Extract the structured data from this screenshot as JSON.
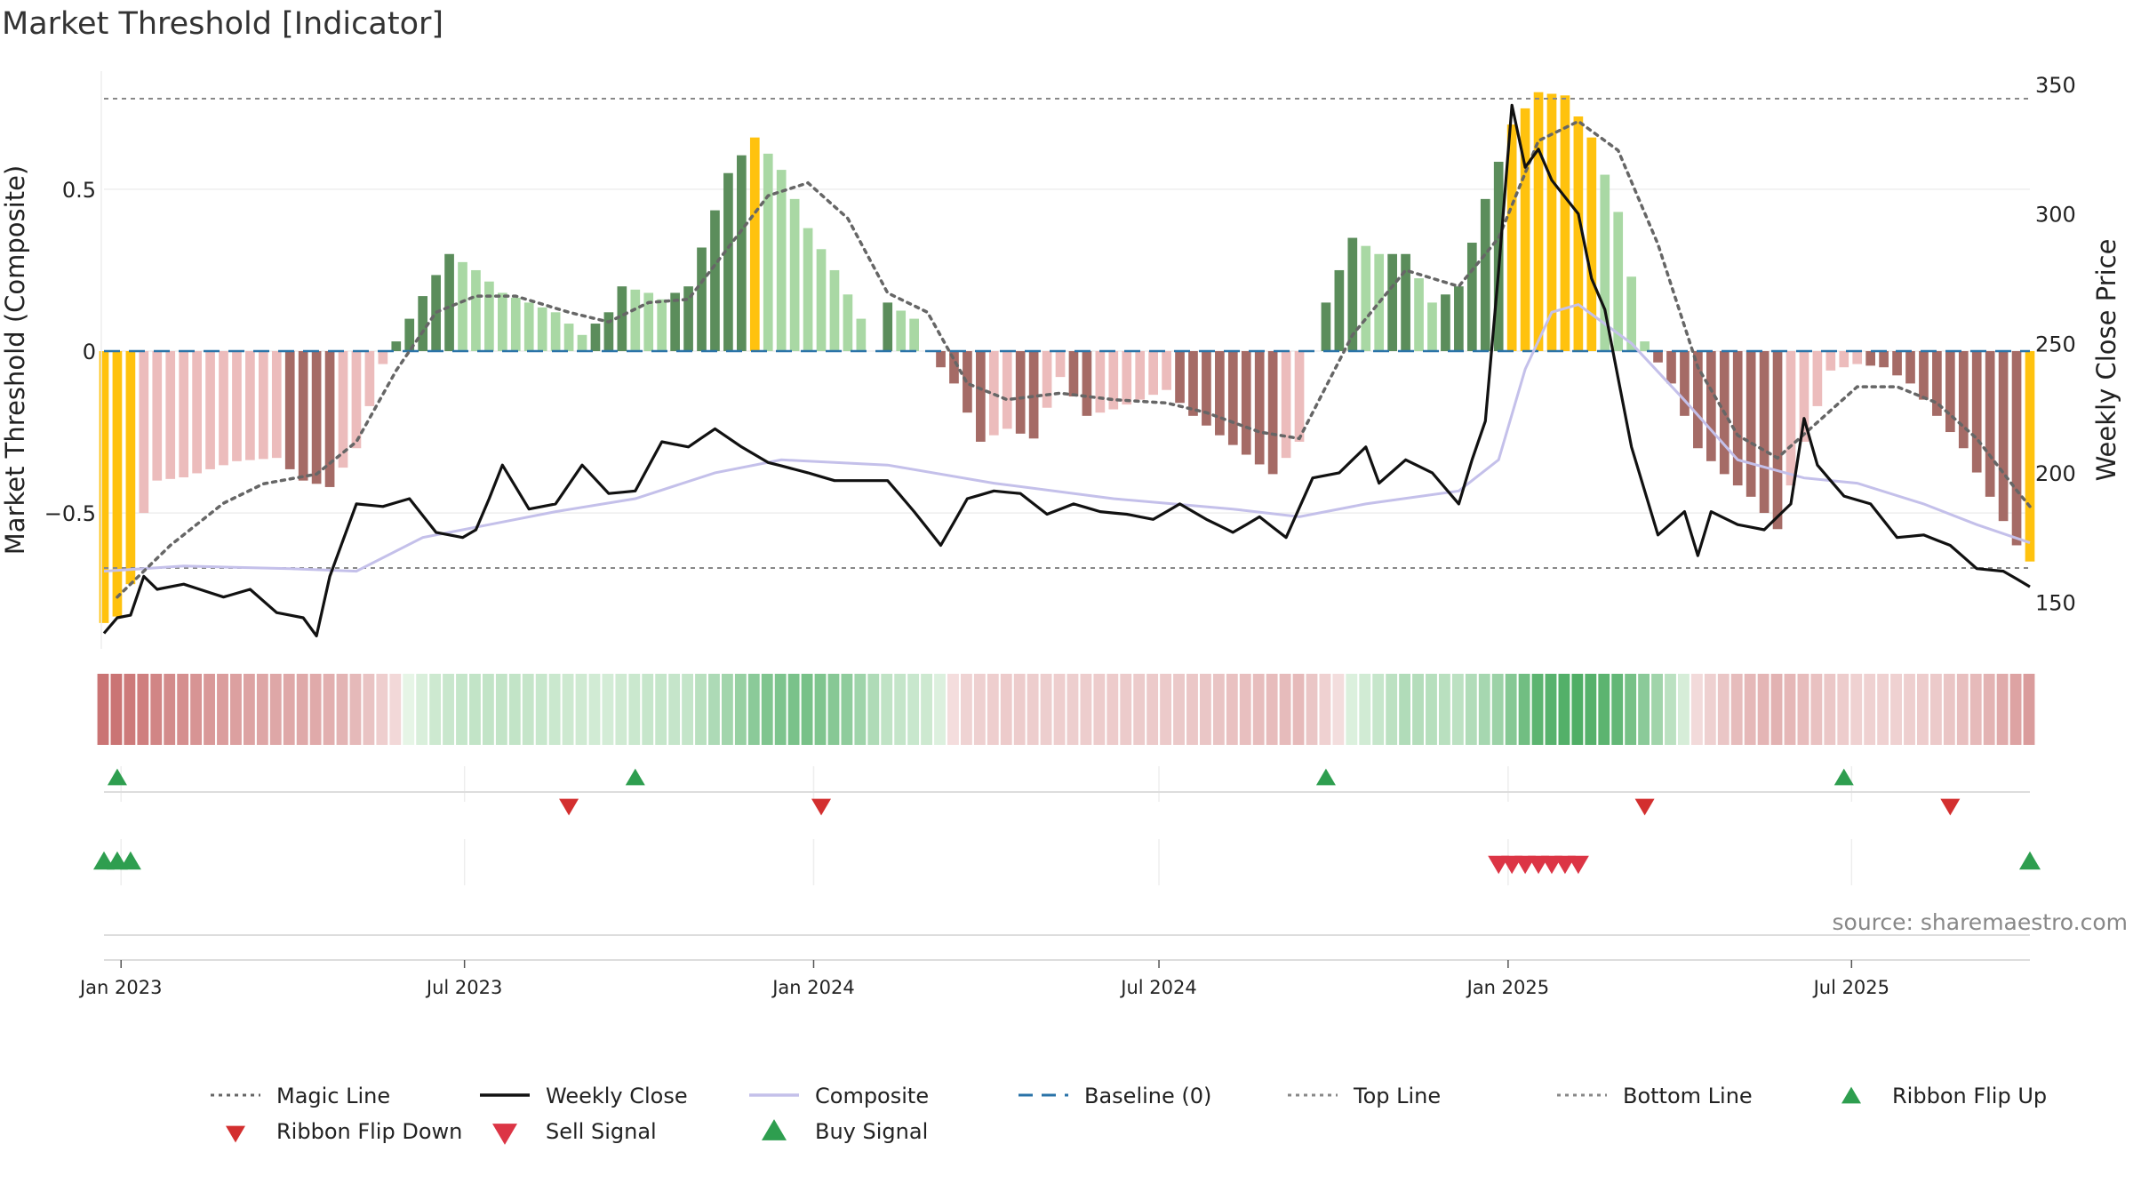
{
  "chart_data": {
    "type": "bar",
    "title": "Market Threshold [Indicator]",
    "ylabel_left": "Market Threshold (Composite)",
    "ylabel_right": "Weekly Close Price",
    "source": "source: sharemaestro.com",
    "left_ticks": [
      {
        "value": 0.5,
        "label": "0.5"
      },
      {
        "value": 0,
        "label": "0"
      },
      {
        "value": -0.5,
        "label": "−0.5"
      }
    ],
    "right_ticks": [
      {
        "value": 350,
        "label": "350"
      },
      {
        "value": 300,
        "label": "300"
      },
      {
        "value": 250,
        "label": "250"
      },
      {
        "value": 200,
        "label": "200"
      },
      {
        "value": 150,
        "label": "150"
      }
    ],
    "ylim_left": [
      -0.92,
      0.92
    ],
    "ylim_right": [
      132,
      362
    ],
    "top_line": 0.78,
    "bottom_line": -0.67,
    "x_start": "2022-12-23",
    "x_end": "2025-10-03",
    "x_ticks": [
      {
        "date": "2023-01-01",
        "label": "Jan 2023"
      },
      {
        "date": "2023-07-01",
        "label": "Jul 2023"
      },
      {
        "date": "2024-01-01",
        "label": "Jan 2024"
      },
      {
        "date": "2024-07-01",
        "label": "Jul 2024"
      },
      {
        "date": "2025-01-01",
        "label": "Jan 2025"
      },
      {
        "date": "2025-07-01",
        "label": "Jul 2025"
      }
    ],
    "composite_anchors": [
      [
        "2022-12-23",
        -0.84
      ],
      [
        "2022-12-30",
        -0.82
      ],
      [
        "2023-01-06",
        -0.72
      ],
      [
        "2023-01-13",
        -0.5
      ],
      [
        "2023-01-20",
        -0.4
      ],
      [
        "2023-02-03",
        -0.39
      ],
      [
        "2023-03-03",
        -0.34
      ],
      [
        "2023-03-24",
        -0.33
      ],
      [
        "2023-04-07",
        -0.4
      ],
      [
        "2023-04-21",
        -0.42
      ],
      [
        "2023-05-05",
        -0.3
      ],
      [
        "2023-05-19",
        -0.04
      ],
      [
        "2023-06-09",
        0.17
      ],
      [
        "2023-06-23",
        0.3
      ],
      [
        "2023-07-07",
        0.25
      ],
      [
        "2023-07-21",
        0.18
      ],
      [
        "2023-08-04",
        0.15
      ],
      [
        "2023-08-18",
        0.12
      ],
      [
        "2023-09-01",
        0.05
      ],
      [
        "2023-09-15",
        0.12
      ],
      [
        "2023-09-22",
        0.2
      ],
      [
        "2023-10-06",
        0.18
      ],
      [
        "2023-10-13",
        0.16
      ],
      [
        "2023-10-27",
        0.2
      ],
      [
        "2023-11-03",
        0.32
      ],
      [
        "2023-11-17",
        0.55
      ],
      [
        "2023-12-01",
        0.66
      ],
      [
        "2023-12-15",
        0.56
      ],
      [
        "2023-12-29",
        0.38
      ],
      [
        "2024-01-12",
        0.25
      ],
      [
        "2024-01-26",
        0.1
      ],
      [
        "2024-02-02",
        0.0
      ],
      [
        "2024-02-09",
        0.15
      ],
      [
        "2024-02-23",
        0.1
      ],
      [
        "2024-03-01",
        0.0
      ],
      [
        "2024-03-15",
        -0.1
      ],
      [
        "2024-03-29",
        -0.28
      ],
      [
        "2024-04-12",
        -0.24
      ],
      [
        "2024-04-26",
        -0.27
      ],
      [
        "2024-05-10",
        -0.08
      ],
      [
        "2024-05-24",
        -0.2
      ],
      [
        "2024-06-07",
        -0.18
      ],
      [
        "2024-06-21",
        -0.15
      ],
      [
        "2024-07-05",
        -0.12
      ],
      [
        "2024-07-19",
        -0.2
      ],
      [
        "2024-08-02",
        -0.26
      ],
      [
        "2024-08-16",
        -0.32
      ],
      [
        "2024-08-30",
        -0.38
      ],
      [
        "2024-09-13",
        -0.28
      ],
      [
        "2024-09-20",
        0.0
      ],
      [
        "2024-09-27",
        0.15
      ],
      [
        "2024-10-11",
        0.35
      ],
      [
        "2024-10-25",
        0.3
      ],
      [
        "2024-11-08",
        0.3
      ],
      [
        "2024-11-22",
        0.15
      ],
      [
        "2024-12-06",
        0.2
      ],
      [
        "2024-12-20",
        0.47
      ],
      [
        "2025-01-03",
        0.7
      ],
      [
        "2025-01-17",
        0.8
      ],
      [
        "2025-01-31",
        0.79
      ],
      [
        "2025-02-14",
        0.66
      ],
      [
        "2025-02-28",
        0.43
      ],
      [
        "2025-03-14",
        0.03
      ],
      [
        "2025-03-28",
        -0.1
      ],
      [
        "2025-04-11",
        -0.3
      ],
      [
        "2025-04-25",
        -0.38
      ],
      [
        "2025-05-09",
        -0.45
      ],
      [
        "2025-05-23",
        -0.55
      ],
      [
        "2025-06-06",
        -0.28
      ],
      [
        "2025-06-20",
        -0.06
      ],
      [
        "2025-07-04",
        -0.04
      ],
      [
        "2025-07-18",
        -0.05
      ],
      [
        "2025-08-01",
        -0.1
      ],
      [
        "2025-08-15",
        -0.2
      ],
      [
        "2025-08-29",
        -0.3
      ],
      [
        "2025-09-12",
        -0.45
      ],
      [
        "2025-09-26",
        -0.6
      ],
      [
        "2025-10-03",
        -0.65
      ]
    ],
    "close_anchors": [
      [
        "2022-12-23",
        138
      ],
      [
        "2022-12-30",
        144
      ],
      [
        "2023-01-06",
        145
      ],
      [
        "2023-01-13",
        160
      ],
      [
        "2023-01-20",
        155
      ],
      [
        "2023-02-03",
        157
      ],
      [
        "2023-02-24",
        152
      ],
      [
        "2023-03-10",
        155
      ],
      [
        "2023-03-24",
        146
      ],
      [
        "2023-04-07",
        144
      ],
      [
        "2023-04-14",
        137
      ],
      [
        "2023-04-21",
        160
      ],
      [
        "2023-05-05",
        188
      ],
      [
        "2023-05-19",
        187
      ],
      [
        "2023-06-02",
        190
      ],
      [
        "2023-06-16",
        177
      ],
      [
        "2023-06-30",
        175
      ],
      [
        "2023-07-07",
        178
      ],
      [
        "2023-07-14",
        190
      ],
      [
        "2023-07-21",
        203
      ],
      [
        "2023-08-04",
        186
      ],
      [
        "2023-08-18",
        188
      ],
      [
        "2023-09-01",
        203
      ],
      [
        "2023-09-15",
        192
      ],
      [
        "2023-09-29",
        193
      ],
      [
        "2023-10-13",
        212
      ],
      [
        "2023-10-27",
        210
      ],
      [
        "2023-11-10",
        217
      ],
      [
        "2023-11-24",
        210
      ],
      [
        "2023-12-08",
        204
      ],
      [
        "2023-12-29",
        200
      ],
      [
        "2024-01-12",
        197
      ],
      [
        "2024-01-26",
        197
      ],
      [
        "2024-02-09",
        197
      ],
      [
        "2024-02-23",
        185
      ],
      [
        "2024-03-08",
        172
      ],
      [
        "2024-03-22",
        190
      ],
      [
        "2024-04-05",
        193
      ],
      [
        "2024-04-19",
        192
      ],
      [
        "2024-05-03",
        184
      ],
      [
        "2024-05-17",
        188
      ],
      [
        "2024-05-31",
        185
      ],
      [
        "2024-06-14",
        184
      ],
      [
        "2024-06-28",
        182
      ],
      [
        "2024-07-12",
        188
      ],
      [
        "2024-07-26",
        182
      ],
      [
        "2024-08-09",
        177
      ],
      [
        "2024-08-23",
        183
      ],
      [
        "2024-09-06",
        175
      ],
      [
        "2024-09-20",
        198
      ],
      [
        "2024-10-04",
        200
      ],
      [
        "2024-10-18",
        210
      ],
      [
        "2024-10-25",
        196
      ],
      [
        "2024-11-08",
        205
      ],
      [
        "2024-11-22",
        200
      ],
      [
        "2024-12-06",
        188
      ],
      [
        "2024-12-13",
        205
      ],
      [
        "2024-12-20",
        220
      ],
      [
        "2024-12-27",
        278
      ],
      [
        "2025-01-03",
        342
      ],
      [
        "2025-01-10",
        318
      ],
      [
        "2025-01-17",
        325
      ],
      [
        "2025-01-24",
        313
      ],
      [
        "2025-02-07",
        300
      ],
      [
        "2025-02-14",
        275
      ],
      [
        "2025-02-21",
        263
      ],
      [
        "2025-03-07",
        210
      ],
      [
        "2025-03-21",
        176
      ],
      [
        "2025-04-04",
        185
      ],
      [
        "2025-04-11",
        168
      ],
      [
        "2025-04-18",
        185
      ],
      [
        "2025-05-02",
        180
      ],
      [
        "2025-05-16",
        178
      ],
      [
        "2025-05-30",
        188
      ],
      [
        "2025-06-06",
        221
      ],
      [
        "2025-06-13",
        203
      ],
      [
        "2025-06-27",
        191
      ],
      [
        "2025-07-11",
        188
      ],
      [
        "2025-07-25",
        175
      ],
      [
        "2025-08-08",
        176
      ],
      [
        "2025-08-22",
        172
      ],
      [
        "2025-09-05",
        163
      ],
      [
        "2025-09-19",
        162
      ],
      [
        "2025-10-03",
        156
      ]
    ],
    "magic_anchors": [
      [
        "2022-12-30",
        -0.76
      ],
      [
        "2023-01-27",
        -0.6
      ],
      [
        "2023-02-24",
        -0.47
      ],
      [
        "2023-03-17",
        -0.41
      ],
      [
        "2023-04-14",
        -0.38
      ],
      [
        "2023-05-05",
        -0.28
      ],
      [
        "2023-05-26",
        -0.06
      ],
      [
        "2023-06-16",
        0.12
      ],
      [
        "2023-07-07",
        0.17
      ],
      [
        "2023-07-28",
        0.17
      ],
      [
        "2023-08-25",
        0.12
      ],
      [
        "2023-09-15",
        0.09
      ],
      [
        "2023-10-06",
        0.15
      ],
      [
        "2023-10-27",
        0.16
      ],
      [
        "2023-11-17",
        0.32
      ],
      [
        "2023-12-08",
        0.48
      ],
      [
        "2023-12-29",
        0.52
      ],
      [
        "2024-01-19",
        0.41
      ],
      [
        "2024-02-09",
        0.18
      ],
      [
        "2024-03-01",
        0.12
      ],
      [
        "2024-03-22",
        -0.1
      ],
      [
        "2024-04-12",
        -0.15
      ],
      [
        "2024-05-10",
        -0.13
      ],
      [
        "2024-06-07",
        -0.15
      ],
      [
        "2024-07-05",
        -0.16
      ],
      [
        "2024-07-26",
        -0.19
      ],
      [
        "2024-08-23",
        -0.25
      ],
      [
        "2024-09-13",
        -0.27
      ],
      [
        "2024-10-11",
        0.05
      ],
      [
        "2024-11-08",
        0.25
      ],
      [
        "2024-12-06",
        0.2
      ],
      [
        "2024-12-27",
        0.35
      ],
      [
        "2025-01-17",
        0.65
      ],
      [
        "2025-02-07",
        0.71
      ],
      [
        "2025-02-28",
        0.62
      ],
      [
        "2025-03-21",
        0.33
      ],
      [
        "2025-04-11",
        -0.05
      ],
      [
        "2025-05-02",
        -0.26
      ],
      [
        "2025-05-23",
        -0.33
      ],
      [
        "2025-06-13",
        -0.22
      ],
      [
        "2025-07-04",
        -0.11
      ],
      [
        "2025-07-25",
        -0.11
      ],
      [
        "2025-08-15",
        -0.16
      ],
      [
        "2025-09-05",
        -0.27
      ],
      [
        "2025-09-26",
        -0.43
      ],
      [
        "2025-10-03",
        -0.48
      ]
    ],
    "smooth_anchors": [
      [
        "2022-12-23",
        162
      ],
      [
        "2023-02-03",
        164
      ],
      [
        "2023-03-31",
        163
      ],
      [
        "2023-05-05",
        162
      ],
      [
        "2023-06-09",
        175
      ],
      [
        "2023-07-14",
        180
      ],
      [
        "2023-08-18",
        185
      ],
      [
        "2023-09-29",
        190
      ],
      [
        "2023-11-10",
        200
      ],
      [
        "2023-12-15",
        205
      ],
      [
        "2024-02-09",
        203
      ],
      [
        "2024-04-05",
        196
      ],
      [
        "2024-06-07",
        190
      ],
      [
        "2024-08-09",
        186
      ],
      [
        "2024-09-13",
        183
      ],
      [
        "2024-10-18",
        188
      ],
      [
        "2024-12-06",
        193
      ],
      [
        "2024-12-27",
        205
      ],
      [
        "2025-01-10",
        240
      ],
      [
        "2025-01-24",
        262
      ],
      [
        "2025-02-07",
        265
      ],
      [
        "2025-03-07",
        250
      ],
      [
        "2025-04-04",
        228
      ],
      [
        "2025-05-02",
        205
      ],
      [
        "2025-06-06",
        198
      ],
      [
        "2025-07-04",
        196
      ],
      [
        "2025-08-08",
        188
      ],
      [
        "2025-09-05",
        180
      ],
      [
        "2025-10-03",
        173
      ]
    ],
    "ribbon_flip_up": [
      "2022-12-30",
      "2023-09-29",
      "2024-09-27",
      "2025-06-27"
    ],
    "ribbon_flip_down": [
      "2023-08-25",
      "2024-01-05",
      "2025-03-14",
      "2025-08-22"
    ],
    "buy_signal": [
      "2022-12-23",
      "2022-12-30",
      "2023-01-06",
      "2025-10-03"
    ],
    "sell_signal": [
      "2024-12-27",
      "2025-01-03",
      "2025-01-10",
      "2025-01-17",
      "2025-01-24",
      "2025-01-31",
      "2025-02-07"
    ],
    "bar_colors": {
      "extreme": "#ffc20e",
      "pos_strong": "#5b8d5b",
      "pos_weak": "#a9d8a4",
      "neg_strong": "#a56b66",
      "neg_weak": "#ecbcbc"
    },
    "line_colors": {
      "magic": "#666666",
      "close": "#111111",
      "composite": "#c4c0ea",
      "baseline": "#2a73a8",
      "threshold": "#888888",
      "flip_up": "#2e9e4f",
      "flip_down": "#d32f2f",
      "sell": "#dc3545",
      "buy": "#2e9e4f"
    },
    "legend": [
      {
        "label": "Magic Line",
        "kind": "dotted",
        "color": "#666666"
      },
      {
        "label": "Weekly Close",
        "kind": "solid",
        "color": "#111111"
      },
      {
        "label": "Composite",
        "kind": "solid",
        "color": "#c4c0ea"
      },
      {
        "label": "Baseline (0)",
        "kind": "dashed",
        "color": "#2a73a8"
      },
      {
        "label": "Top Line",
        "kind": "dotted",
        "color": "#888888"
      },
      {
        "label": "Bottom Line",
        "kind": "dotted",
        "color": "#888888"
      },
      {
        "label": "Ribbon Flip Up",
        "kind": "tri-up-small",
        "color": "#2e9e4f"
      },
      {
        "label": "Ribbon Flip Down",
        "kind": "tri-down-small",
        "color": "#d32f2f"
      },
      {
        "label": "Sell Signal",
        "kind": "tri-down",
        "color": "#dc3545"
      },
      {
        "label": "Buy Signal",
        "kind": "tri-up",
        "color": "#2e9e4f"
      }
    ]
  }
}
